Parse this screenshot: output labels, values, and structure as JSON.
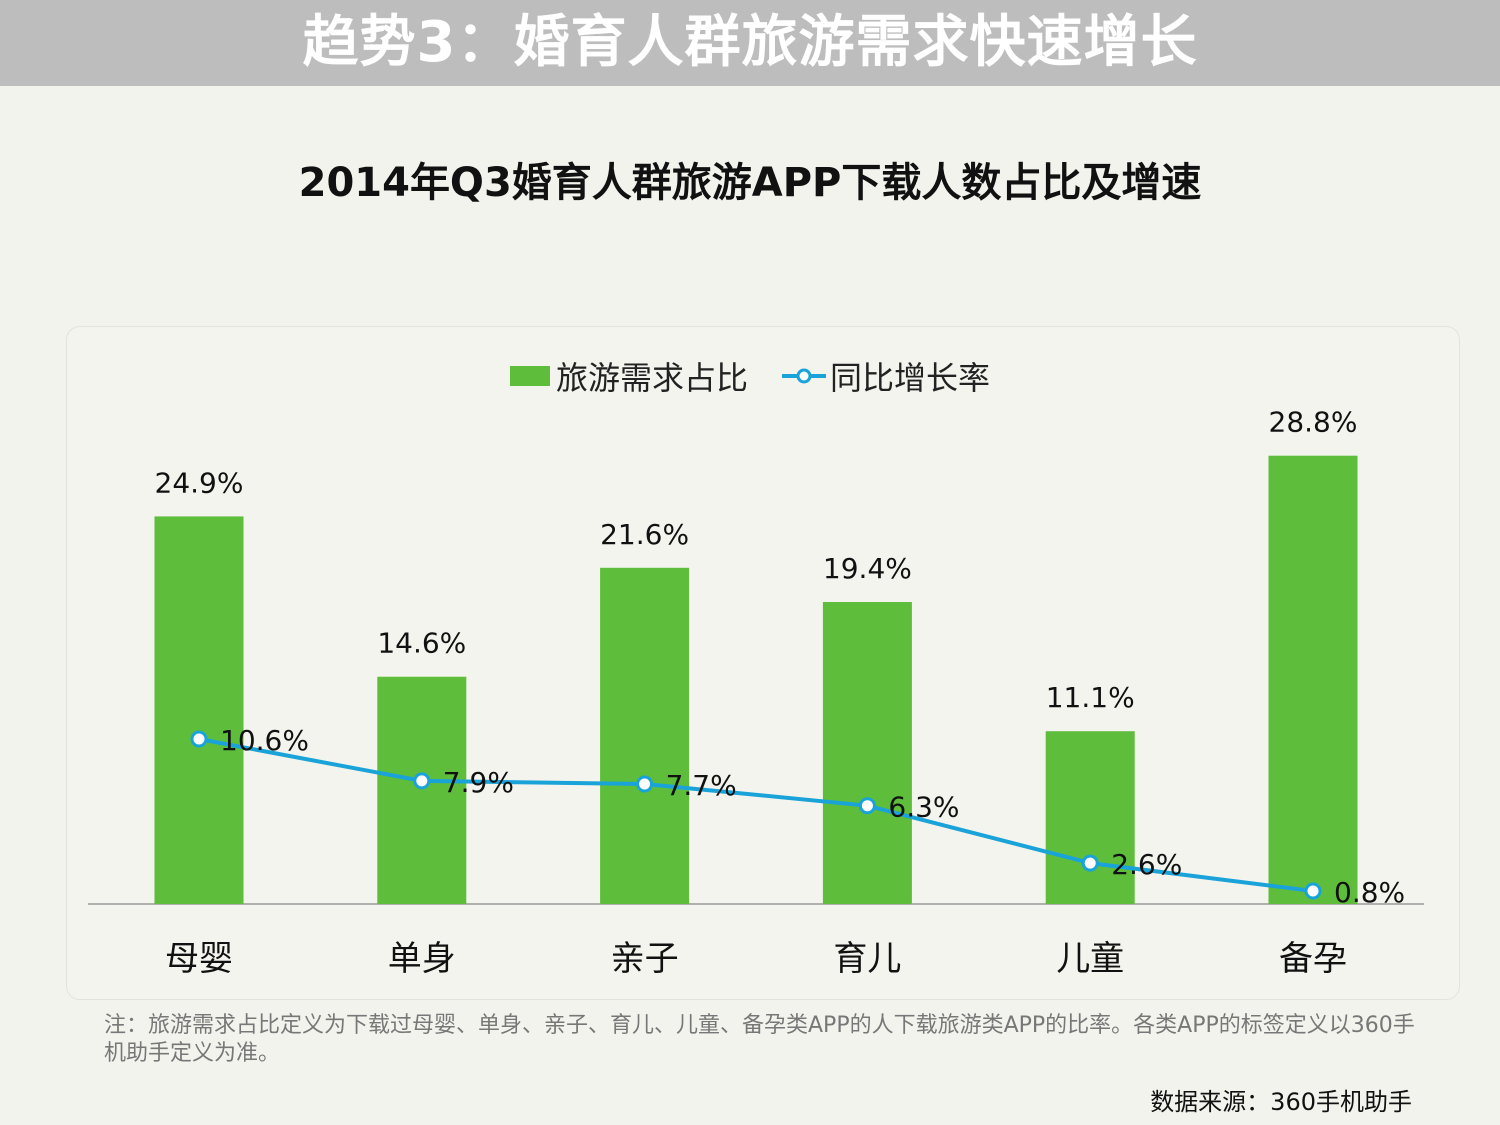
{
  "header": {
    "title": "趋势3：婚育人群旅游需求快速增长"
  },
  "colors": {
    "bar": "#5ebd3a",
    "line": "#1aa3d9",
    "header_bg": "#bdbdbd"
  },
  "legend": {
    "bar_label": "旅游需求占比",
    "line_label": "同比增长率",
    "bar_icon": "green-bar-swatch",
    "line_icon": "line-with-circle-marker"
  },
  "chart_data": {
    "type": "bar",
    "title": "2014年Q3婚育人群旅游APP下载人数占比及增速",
    "categories": [
      "母婴",
      "单身",
      "亲子",
      "育儿",
      "儿童",
      "备孕"
    ],
    "series": [
      {
        "name": "旅游需求占比",
        "type": "bar",
        "values": [
          24.9,
          14.6,
          21.6,
          19.4,
          11.1,
          28.8
        ],
        "labels": [
          "24.9%",
          "14.6%",
          "21.6%",
          "19.4%",
          "11.1%",
          "28.8%"
        ]
      },
      {
        "name": "同比增长率",
        "type": "line",
        "values": [
          10.6,
          7.9,
          7.7,
          6.3,
          2.6,
          0.8
        ],
        "labels": [
          "10.6%",
          "7.9%",
          "7.7%",
          "6.3%",
          "2.6%",
          "0.8%"
        ]
      }
    ],
    "ylim": [
      0,
      30
    ],
    "xlabel": "",
    "ylabel": "",
    "grid": false,
    "legend_position": "top-center"
  },
  "footer": {
    "note": "注：旅游需求占比定义为下载过母婴、单身、亲子、育儿、儿童、备孕类APP的人下载旅游类APP的比率。各类APP的标签定义以360手机助手定义为准。",
    "source": "数据来源：360手机助手"
  }
}
